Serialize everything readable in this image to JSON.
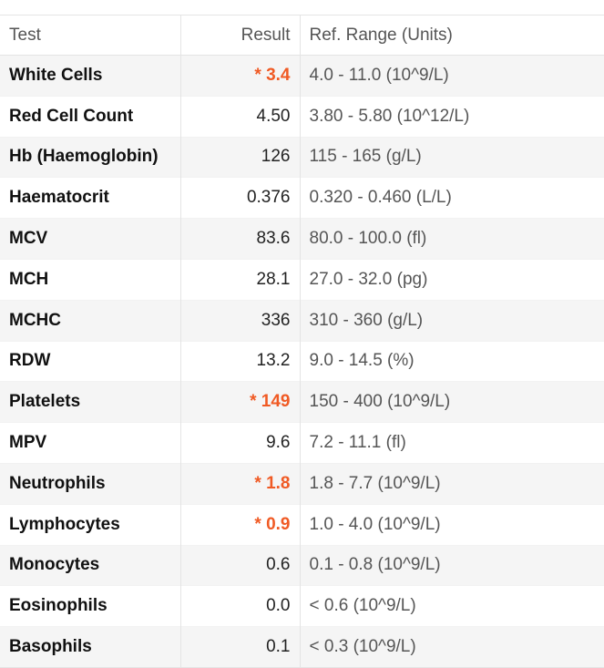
{
  "header": {
    "test": "Test",
    "result": "Result",
    "range": "Ref. Range (Units)"
  },
  "rows": [
    {
      "test": "White Cells",
      "result": "* 3.4",
      "range": "4.0 - 11.0 (10^9/L)",
      "abnormal": true
    },
    {
      "test": "Red Cell Count",
      "result": "4.50",
      "range": "3.80 - 5.80 (10^12/L)",
      "abnormal": false
    },
    {
      "test": "Hb (Haemoglobin)",
      "result": "126",
      "range": "115 - 165 (g/L)",
      "abnormal": false
    },
    {
      "test": "Haematocrit",
      "result": "0.376",
      "range": "0.320 - 0.460 (L/L)",
      "abnormal": false
    },
    {
      "test": "MCV",
      "result": "83.6",
      "range": "80.0 - 100.0 (fl)",
      "abnormal": false
    },
    {
      "test": "MCH",
      "result": "28.1",
      "range": "27.0 - 32.0 (pg)",
      "abnormal": false
    },
    {
      "test": "MCHC",
      "result": "336",
      "range": "310 - 360 (g/L)",
      "abnormal": false
    },
    {
      "test": "RDW",
      "result": "13.2",
      "range": "9.0 - 14.5 (%)",
      "abnormal": false
    },
    {
      "test": "Platelets",
      "result": "* 149",
      "range": "150 - 400 (10^9/L)",
      "abnormal": true
    },
    {
      "test": "MPV",
      "result": "9.6",
      "range": "7.2 - 11.1 (fl)",
      "abnormal": false
    },
    {
      "test": "Neutrophils",
      "result": "* 1.8",
      "range": "1.8 - 7.7 (10^9/L)",
      "abnormal": true
    },
    {
      "test": "Lymphocytes",
      "result": "* 0.9",
      "range": "1.0 - 4.0 (10^9/L)",
      "abnormal": true
    },
    {
      "test": "Monocytes",
      "result": "0.6",
      "range": "0.1 - 0.8 (10^9/L)",
      "abnormal": false
    },
    {
      "test": "Eosinophils",
      "result": "0.0",
      "range": "< 0.6 (10^9/L)",
      "abnormal": false
    },
    {
      "test": "Basophils",
      "result": "0.1",
      "range": "< 0.3 (10^9/L)",
      "abnormal": false
    }
  ],
  "colors": {
    "abnormal": "#f05a24",
    "alt_row": "#f5f5f5"
  }
}
